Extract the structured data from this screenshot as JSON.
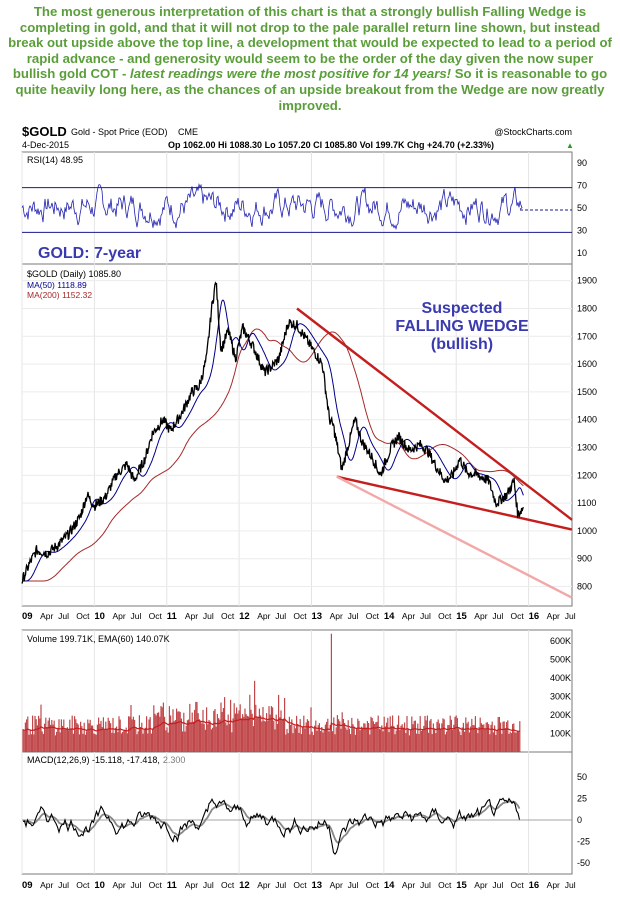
{
  "commentary": {
    "part1": "The most generous interpretation of this chart is that a strongly bullish Falling Wedge is completing in gold, and that it will not drop to the pale parallel return line shown, but instead break out upside above the top line, a development that would be expected to lead to a period of rapid advance - and generosity would seem to be the order of the day given the now super bullish gold COT - ",
    "emphasis": "latest readings were the most positive for 14 years!",
    "part2": " So it is reasonable to go quite heavily long here, as the chances of an upside breakout from the Wedge are now greatly improved."
  },
  "header": {
    "symbol": "$GOLD",
    "description": "Gold - Spot Price (EOD)",
    "exchange": "CME",
    "watermark": "@StockCharts.com",
    "date": "4-Dec-2015",
    "quote": "Op 1062.00  Hi 1088.30  Lo 1057.20  Cl 1085.80  Vol 199.7K  Chg +24.70 (+2.33%)",
    "chg_arrow": "▲"
  },
  "chart_data": [
    {
      "panel": "rsi",
      "type": "line",
      "legend": "RSI(14) 48.95",
      "y_ticks": [
        10,
        30,
        50,
        70,
        90
      ],
      "ylim": [
        0,
        100
      ],
      "reference_lines": [
        30,
        70
      ],
      "last_value": 48.95
    },
    {
      "panel": "price",
      "type": "line",
      "title": "GOLD: 7-year",
      "legend": [
        "$GOLD (Daily) 1085.80",
        "MA(50) 1118.89",
        "MA(200) 1152.32"
      ],
      "y_ticks": [
        800,
        900,
        1000,
        1100,
        1200,
        1300,
        1400,
        1500,
        1600,
        1700,
        1800,
        1900
      ],
      "ylim": [
        730,
        1960
      ],
      "x_tick_labels": [
        "09",
        "Apr",
        "Jul",
        "Oct",
        "10",
        "Apr",
        "Jul",
        "Oct",
        "11",
        "Apr",
        "Jul",
        "Oct",
        "12",
        "Apr",
        "Jul",
        "Oct",
        "13",
        "Apr",
        "Jul",
        "Oct",
        "14",
        "Apr",
        "Jul",
        "Oct",
        "15",
        "Apr",
        "Jul",
        "Oct",
        "16",
        "Apr",
        "Jul"
      ],
      "xlim": [
        2009.0,
        2016.6
      ],
      "series": [
        {
          "name": "$GOLD (Daily)",
          "color": "#000000",
          "x": [
            2009.0,
            2009.1,
            2009.2,
            2009.35,
            2009.5,
            2009.65,
            2009.8,
            2009.9,
            2010.0,
            2010.15,
            2010.3,
            2010.45,
            2010.55,
            2010.7,
            2010.8,
            2010.95,
            2011.05,
            2011.2,
            2011.35,
            2011.45,
            2011.55,
            2011.62,
            2011.68,
            2011.75,
            2011.85,
            2011.95,
            2012.05,
            2012.2,
            2012.35,
            2012.45,
            2012.55,
            2012.68,
            2012.8,
            2012.9,
            2013.0,
            2013.15,
            2013.25,
            2013.3,
            2013.42,
            2013.5,
            2013.6,
            2013.7,
            2013.85,
            2013.95,
            2014.1,
            2014.2,
            2014.35,
            2014.5,
            2014.6,
            2014.75,
            2014.85,
            2014.95,
            2015.05,
            2015.15,
            2015.3,
            2015.45,
            2015.55,
            2015.7,
            2015.8,
            2015.85,
            2015.93
          ],
          "values": [
            820,
            880,
            930,
            920,
            950,
            990,
            1050,
            1130,
            1090,
            1120,
            1200,
            1240,
            1180,
            1260,
            1350,
            1400,
            1360,
            1420,
            1500,
            1520,
            1620,
            1800,
            1900,
            1650,
            1720,
            1620,
            1730,
            1660,
            1570,
            1590,
            1620,
            1750,
            1740,
            1700,
            1660,
            1600,
            1400,
            1380,
            1220,
            1300,
            1400,
            1320,
            1260,
            1200,
            1300,
            1340,
            1290,
            1310,
            1290,
            1220,
            1180,
            1200,
            1260,
            1210,
            1200,
            1180,
            1100,
            1130,
            1180,
            1060,
            1085.8
          ]
        },
        {
          "name": "MA(50)",
          "color": "#00008b",
          "last_value": 1118.89
        },
        {
          "name": "MA(200)",
          "color": "#a52a2a",
          "last_value": 1152.32
        }
      ],
      "annotation": {
        "lines": [
          "Suspected",
          "FALLING WEDGE",
          "(bullish)"
        ],
        "color": "#3a3ab0"
      },
      "trendlines": [
        {
          "name": "wedge-upper",
          "color": "#c41e1e",
          "from": [
            2012.8,
            1800
          ],
          "to": [
            2016.6,
            1040
          ]
        },
        {
          "name": "wedge-lower",
          "color": "#c41e1e",
          "from": [
            2013.35,
            1195
          ],
          "to": [
            2016.6,
            1005
          ]
        },
        {
          "name": "return-line",
          "color": "#f3a8a8",
          "from": [
            2013.35,
            1195
          ],
          "to": [
            2016.6,
            760
          ]
        }
      ]
    },
    {
      "panel": "volume",
      "type": "bar",
      "legend": "Volume 199.71K, EMA(60) 140.07K",
      "y_ticks": [
        "100K",
        "200K",
        "300K",
        "400K",
        "500K",
        "600K"
      ],
      "ylim": [
        0,
        660000
      ],
      "last_value": 199710,
      "ema_last": 140070
    },
    {
      "panel": "macd",
      "type": "line",
      "legend_main": "MACD(12,26,9) -15.118, -17.418,",
      "legend_hist": "2.300",
      "y_ticks": [
        -50,
        -25,
        0,
        25,
        50
      ],
      "ylim": [
        -63,
        63
      ]
    }
  ],
  "colors": {
    "commentary": "#5a9e3a",
    "axis_label": "#3a3ab0",
    "price": "#000000",
    "ma50": "#00008b",
    "ma200": "#a52a2a",
    "volume": "#c0474a"
  }
}
